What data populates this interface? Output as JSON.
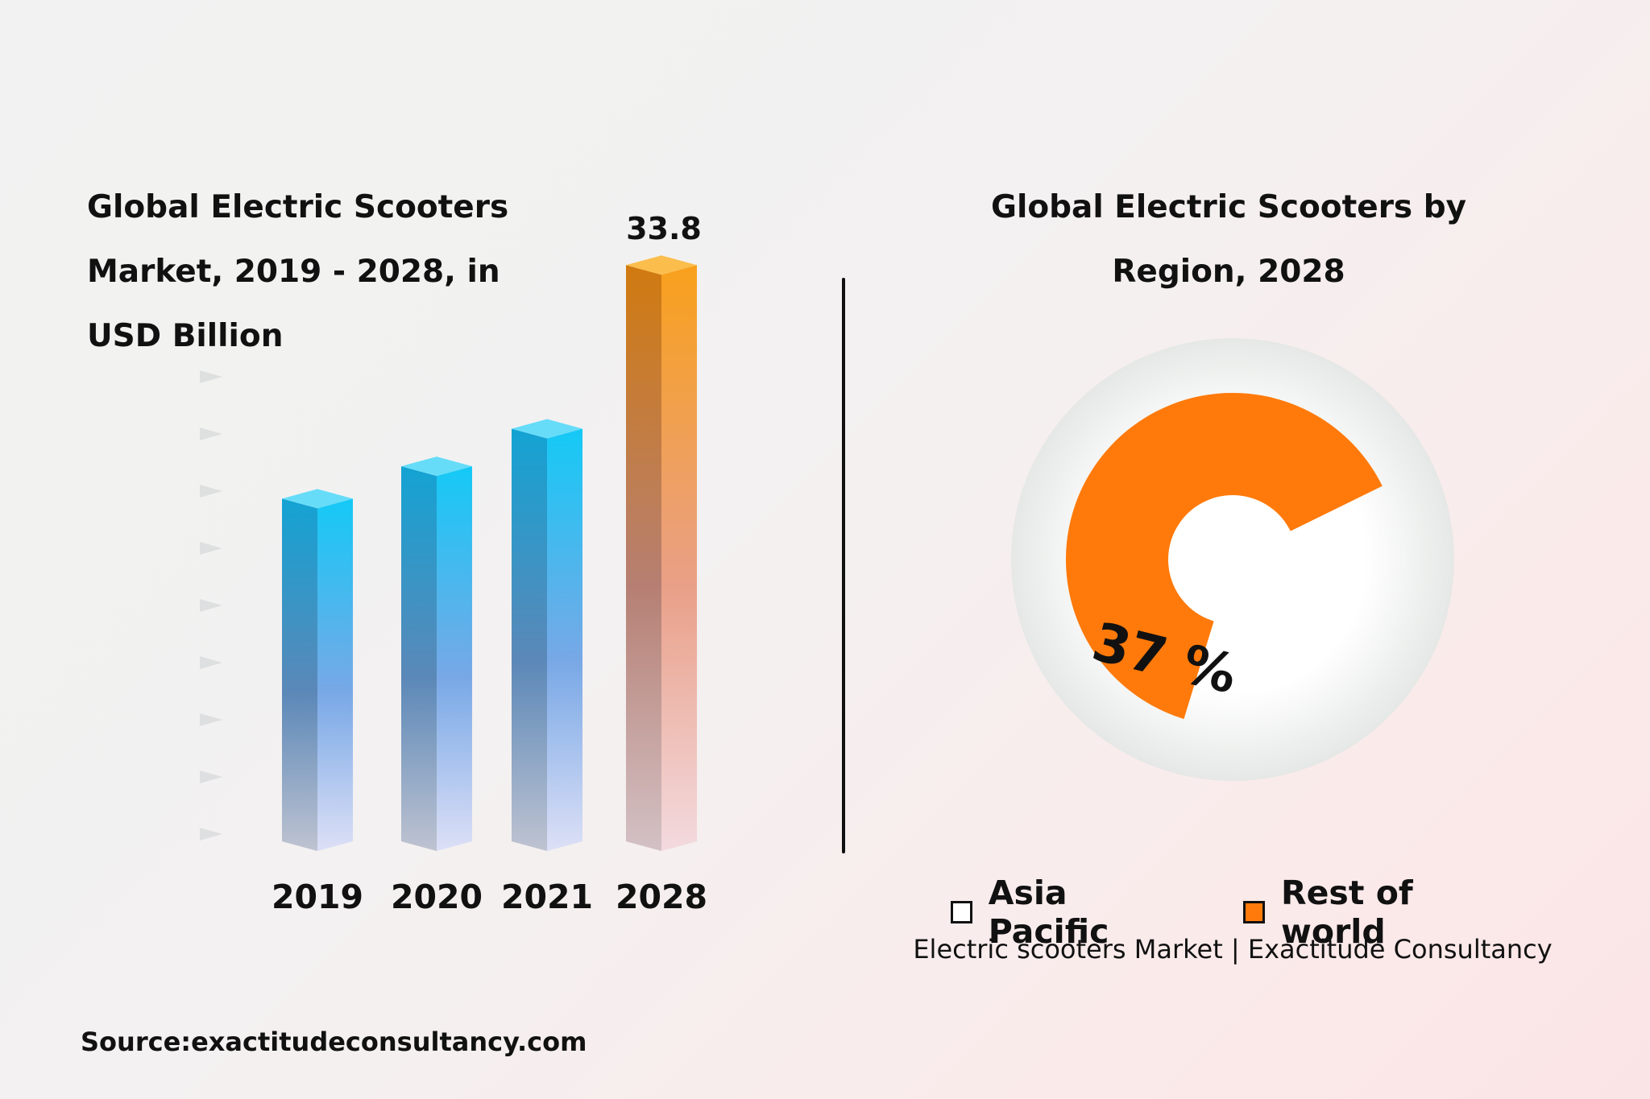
{
  "left_title": "Global Electric Scooters Market, 2019 - 2028, in USD Billion",
  "right_title": "Global Electric Scooters by Region, 2028",
  "chart_data": [
    {
      "type": "bar",
      "title": "Global Electric Scooters Market, 2019 - 2028, in USD Billion",
      "categories": [
        "2019",
        "2020",
        "2021",
        "2028"
      ],
      "values": [
        20.1,
        22.0,
        24.2,
        33.8
      ],
      "data_labels": [
        null,
        null,
        null,
        "33.8"
      ],
      "ylim": [
        0,
        34
      ],
      "colors": {
        "blue_top": "#13c8f4",
        "blue_bottom": "#dcdff5",
        "orange_top": "#f8a01c",
        "orange_bottom": "#f3d8dc"
      },
      "grid": false
    },
    {
      "type": "pie",
      "title": "Global Electric Scooters by Region, 2028",
      "labels": [
        "Asia Pacific",
        "Rest of world"
      ],
      "values": [
        37,
        63
      ],
      "data_label": "37 %",
      "colors": {
        "Asia Pacific": "#ffffff",
        "Rest of world": "#ff7a0a"
      },
      "legend_position": "bottom"
    }
  ],
  "legend": {
    "asia_pacific": "Asia Pacific",
    "rest_of_world": "Rest of world"
  },
  "caption": "Electric scooters Market | Exactitude Consultancy",
  "source": "Source:exactitudeconsultancy.com"
}
